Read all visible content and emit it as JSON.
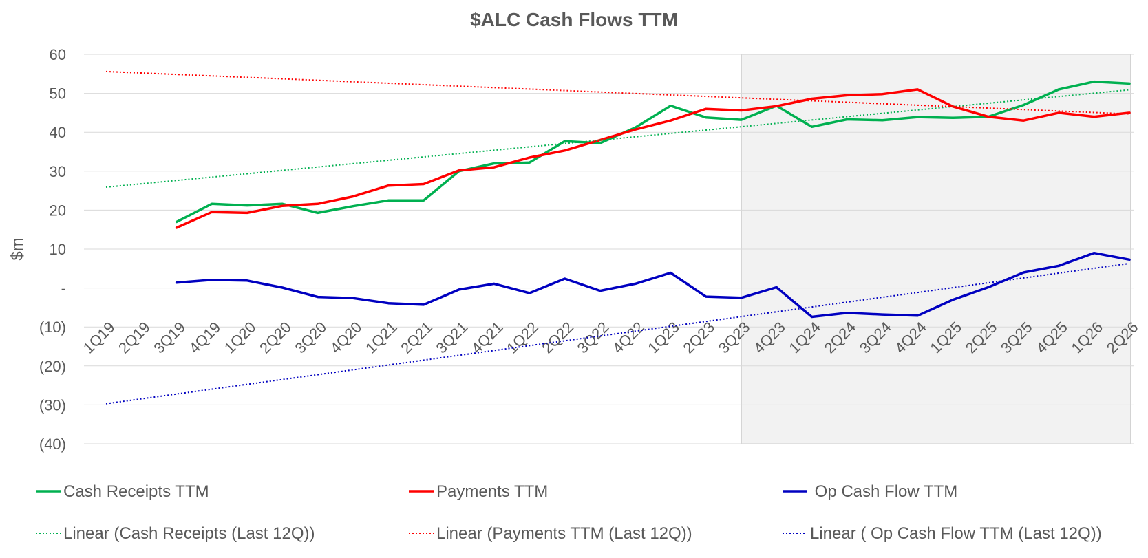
{
  "chart_data": {
    "type": "line",
    "title": "$ALC  Cash Flows TTM",
    "ylabel": "$m",
    "xlabel": "",
    "ylim": [
      -40,
      60
    ],
    "yticks": [
      60,
      50,
      40,
      30,
      20,
      10,
      0,
      -10,
      -20,
      -30,
      -40
    ],
    "ytick_labels": [
      "60",
      "50",
      "40",
      "30",
      "20",
      "10",
      "-",
      "(10)",
      "(20)",
      "(30)",
      "(40)"
    ],
    "grid": true,
    "categories": [
      "1Q19",
      "2Q19",
      "3Q19",
      "4Q19",
      "1Q20",
      "2Q20",
      "3Q20",
      "4Q20",
      "1Q21",
      "2Q21",
      "3Q21",
      "4Q21",
      "1Q22",
      "2Q22",
      "3Q22",
      "4Q22",
      "1Q23",
      "2Q23",
      "3Q23",
      "4Q23",
      "1Q24",
      "2Q24",
      "3Q24",
      "4Q24",
      "1Q25",
      "2Q25",
      "3Q25",
      "4Q25",
      "1Q26",
      "2Q26"
    ],
    "shaded_region": {
      "from": "3Q23",
      "to": "2Q26",
      "color": "#f2f2f2",
      "meaning": "forecast"
    },
    "series": [
      {
        "name": "Cash Receipts TTM",
        "color": "#00b050",
        "style": "solid",
        "values": [
          null,
          null,
          17,
          21.6,
          21.2,
          21.6,
          19.3,
          21,
          22.5,
          22.5,
          30,
          32,
          32.2,
          37.7,
          37.2,
          41.2,
          46.8,
          43.8,
          43.2,
          46.8,
          41.4,
          43.3,
          43.1,
          43.9,
          43.7,
          44,
          47,
          51,
          53,
          52.5
        ]
      },
      {
        "name": "Payments TTM",
        "color": "#ff0000",
        "style": "solid",
        "values": [
          null,
          null,
          15.5,
          19.5,
          19.3,
          21.1,
          21.6,
          23.5,
          26.3,
          26.7,
          30.2,
          31,
          33.5,
          35.3,
          38,
          40.7,
          43,
          46,
          45.6,
          46.7,
          48.6,
          49.5,
          49.8,
          51,
          46.6,
          44,
          43,
          45,
          44,
          45
        ]
      },
      {
        "name": "Op Cash Flow TTM",
        "color": "#0000c0",
        "style": "solid",
        "values": [
          null,
          null,
          1.4,
          2.1,
          1.9,
          0.1,
          -2.3,
          -2.6,
          -3.9,
          -4.3,
          -0.4,
          1.1,
          -1.3,
          2.4,
          -0.7,
          1.1,
          3.9,
          -2.2,
          -2.5,
          0.2,
          -7.4,
          -6.4,
          -6.8,
          -7.1,
          -3,
          0.2,
          4,
          5.7,
          9,
          7.3
        ]
      },
      {
        "name": "Linear (Cash Receipts (Last 12Q))",
        "color": "#00b050",
        "style": "dotted",
        "values": [
          25.9,
          null,
          null,
          null,
          null,
          null,
          null,
          null,
          null,
          null,
          null,
          null,
          null,
          null,
          null,
          null,
          null,
          null,
          null,
          null,
          null,
          null,
          null,
          null,
          null,
          null,
          null,
          null,
          null,
          50.9
        ]
      },
      {
        "name": "Linear (Payments TTM (Last 12Q))",
        "color": "#ff0000",
        "style": "dotted",
        "values": [
          55.6,
          null,
          null,
          null,
          null,
          null,
          null,
          null,
          null,
          null,
          null,
          null,
          null,
          null,
          null,
          null,
          null,
          null,
          null,
          null,
          null,
          null,
          null,
          null,
          null,
          null,
          null,
          null,
          null,
          44.7
        ]
      },
      {
        "name": "Linear ( Op Cash Flow TTM (Last 12Q))",
        "color": "#0000c0",
        "style": "dotted",
        "values": [
          -29.7,
          null,
          null,
          null,
          null,
          null,
          null,
          null,
          null,
          null,
          null,
          null,
          null,
          null,
          null,
          null,
          null,
          null,
          null,
          null,
          null,
          null,
          null,
          null,
          null,
          null,
          null,
          null,
          null,
          6.3
        ]
      }
    ],
    "legend": {
      "placement": "bottom",
      "items": [
        {
          "label": "Cash Receipts TTM",
          "color": "#00b050",
          "style": "solid"
        },
        {
          "label": "Payments TTM",
          "color": "#ff0000",
          "style": "solid"
        },
        {
          "label": " Op Cash Flow TTM",
          "color": "#0000c0",
          "style": "solid"
        },
        {
          "label": "Linear (Cash Receipts (Last 12Q))",
          "color": "#00b050",
          "style": "dotted"
        },
        {
          "label": "Linear (Payments TTM (Last 12Q))",
          "color": "#ff0000",
          "style": "dotted"
        },
        {
          "label": "Linear ( Op Cash Flow TTM (Last 12Q))",
          "color": "#0000c0",
          "style": "dotted"
        }
      ]
    }
  }
}
